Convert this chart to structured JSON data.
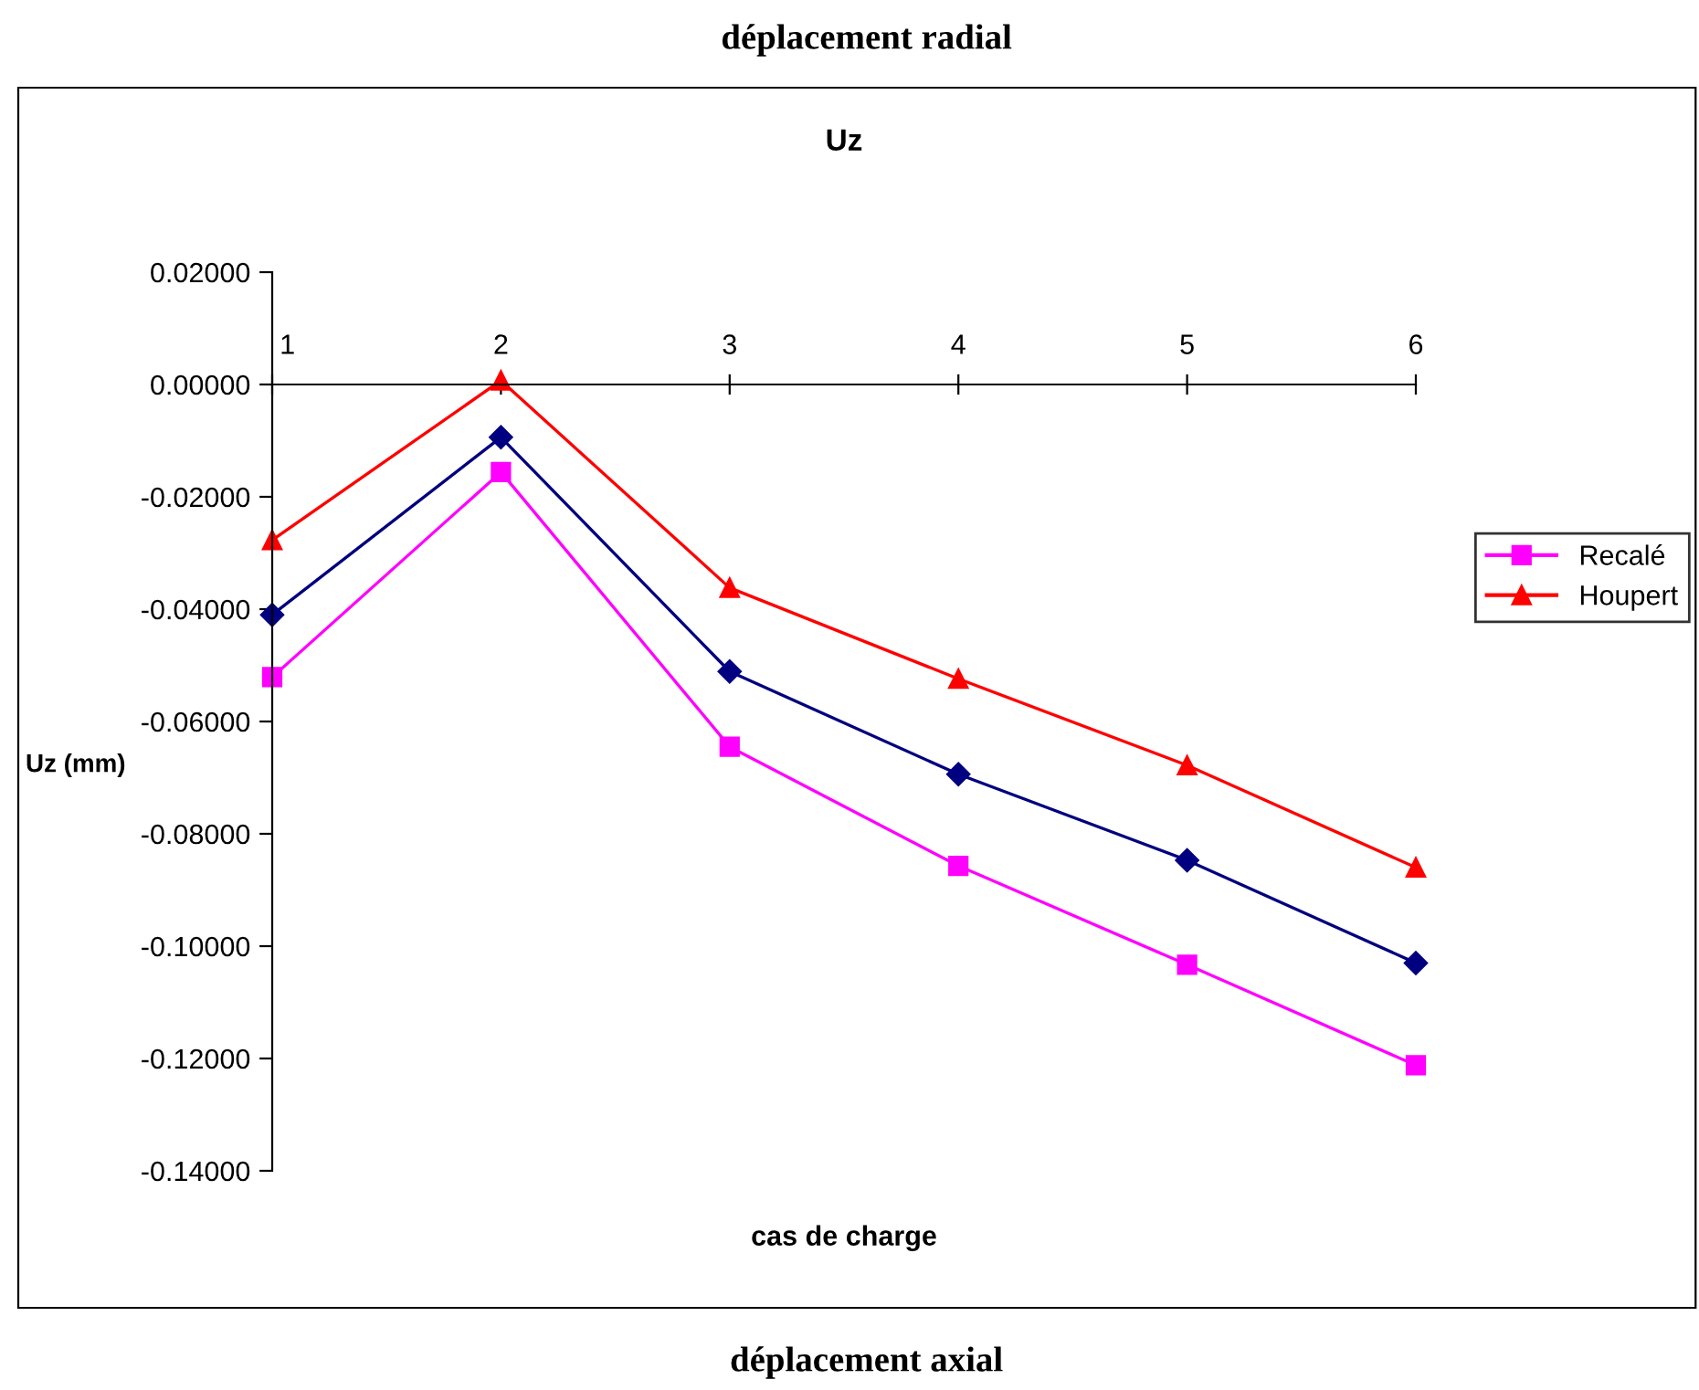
{
  "chart_data": {
    "type": "line",
    "title": "Uz",
    "xlabel": "cas de charge",
    "ylabel": "Uz (mm)",
    "annotations": [
      "déplacement radial",
      "déplacement axial"
    ],
    "categories": [
      "1",
      "2",
      "3",
      "4",
      "5",
      "6"
    ],
    "series": [
      {
        "color": "#000080",
        "marker": "diamond",
        "values": [
          -0.041,
          -0.0094,
          -0.0511,
          -0.0694,
          -0.0847,
          -0.103
        ]
      },
      {
        "name": "Recalé",
        "color": "#ff00ff",
        "marker": "square",
        "values": [
          -0.0521,
          -0.0156,
          -0.0645,
          -0.0857,
          -0.1033,
          -0.1212
        ]
      },
      {
        "name": "Houpert",
        "color": "#ff0000",
        "marker": "triangle",
        "values": [
          -0.0277,
          0.0007,
          -0.0362,
          -0.0524,
          -0.0678,
          -0.086
        ]
      }
    ],
    "ylim": [
      -0.14,
      0.02
    ],
    "yticks": [
      {
        "value": 0.02,
        "label": "0.02000"
      },
      {
        "value": 0.0,
        "label": "0.00000"
      },
      {
        "value": -0.02,
        "label": "-0.02000"
      },
      {
        "value": -0.04,
        "label": "-0.04000"
      },
      {
        "value": -0.06,
        "label": "-0.06000"
      },
      {
        "value": -0.08,
        "label": "-0.08000"
      },
      {
        "value": -0.1,
        "label": "-0.10000"
      },
      {
        "value": -0.12,
        "label": "-0.12000"
      },
      {
        "value": -0.14,
        "label": "-0.14000"
      }
    ],
    "grid": false,
    "legend": "right",
    "line_style": "solid"
  }
}
